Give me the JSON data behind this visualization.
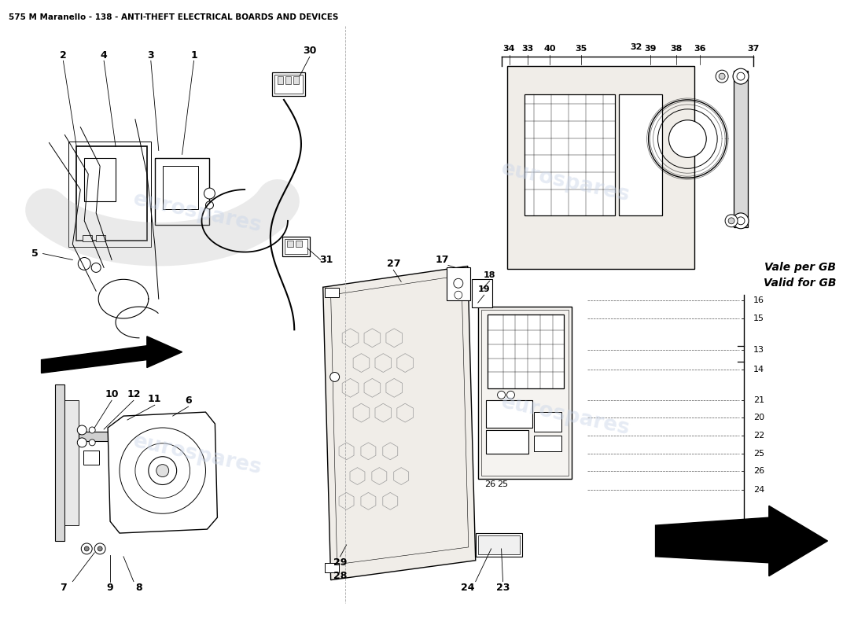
{
  "title": "575 M Maranello - 138 - ANTI-THEFT ELECTRICAL BOARDS AND DEVICES",
  "title_fontsize": 7.5,
  "title_fontweight": "bold",
  "bg_color": "#ffffff",
  "fig_width": 11.0,
  "fig_height": 8.0,
  "watermark_text": "eurospares",
  "watermark_color": "#c8d4e8",
  "watermark_alpha": 0.45,
  "line_color": "#000000",
  "gb_text1": "Vale per GB",
  "gb_text2": "Valid for GB",
  "gb_fontsize": 10,
  "gb_fontweight": "bold",
  "label_fontsize": 8,
  "label_bold_fontsize": 9
}
